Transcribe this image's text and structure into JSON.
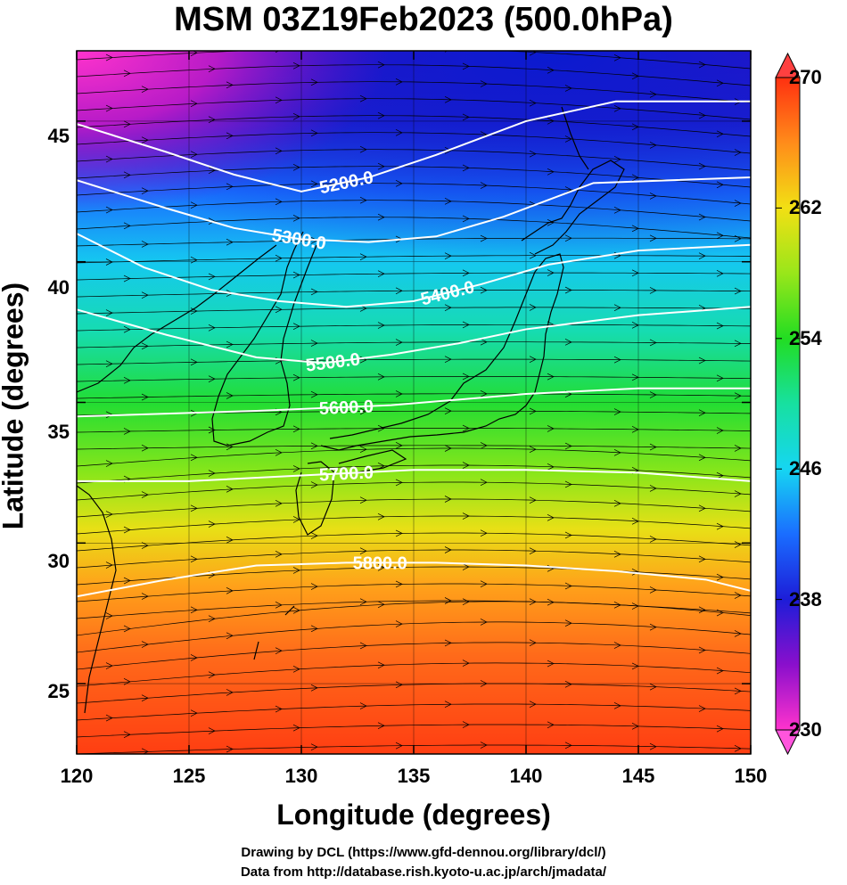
{
  "title": "MSM 03Z19Feb2023 (500.0hPa)",
  "credits": {
    "drawing": "Drawing by DCL (https://www.gfd-dennou.org/library/dcl/)",
    "data": "Data from http://database.rish.kyoto-u.ac.jp/arch/jmadata/"
  },
  "chart_data": {
    "type": "heatmap",
    "xlabel": "Longitude (degrees)",
    "ylabel": "Latitude  (degrees)",
    "xlim": [
      120,
      150
    ],
    "ylim": [
      22.5,
      47.5
    ],
    "x_ticks": [
      "120",
      "125",
      "130",
      "135",
      "140",
      "145",
      "150"
    ],
    "y_ticks": [
      "25",
      "30",
      "35",
      "40",
      "45"
    ],
    "colorbar": {
      "range": [
        230,
        270
      ],
      "ticks": [
        "230",
        "238",
        "246",
        "254",
        "262",
        "270"
      ],
      "extend": "both",
      "colors": [
        "#ff33cc",
        "#8800cc",
        "#1d1dd8",
        "#1a6dff",
        "#16d6f2",
        "#17e0a0",
        "#22dd22",
        "#99e61a",
        "#f2e014",
        "#ff8c1a",
        "#ff4a1a",
        "#ff3010"
      ]
    },
    "contours": {
      "variable": "geopotential height",
      "levels": [
        {
          "label": "5200.0",
          "points": [
            [
              120,
              44.9
            ],
            [
              124,
              43.9
            ],
            [
              127,
              43.1
            ],
            [
              130,
              42.5
            ],
            [
              133,
              43.0
            ],
            [
              136,
              43.8
            ],
            [
              140,
              45.0
            ],
            [
              144,
              45.7
            ],
            [
              150,
              45.7
            ]
          ]
        },
        {
          "label": "5300.0",
          "points": [
            [
              120,
              42.9
            ],
            [
              124,
              41.9
            ],
            [
              127,
              41.2
            ],
            [
              130,
              40.8
            ],
            [
              133,
              40.7
            ],
            [
              136,
              40.9
            ],
            [
              139,
              41.6
            ],
            [
              143,
              42.8
            ],
            [
              150,
              43.0
            ]
          ]
        },
        {
          "label": "5400.0",
          "points": [
            [
              120,
              41.0
            ],
            [
              123,
              39.8
            ],
            [
              126,
              39.0
            ],
            [
              129,
              38.6
            ],
            [
              132,
              38.4
            ],
            [
              135,
              38.6
            ],
            [
              138,
              39.2
            ],
            [
              141,
              39.9
            ],
            [
              145,
              40.4
            ],
            [
              150,
              40.6
            ]
          ]
        },
        {
          "label": "5500.0",
          "points": [
            [
              120,
              38.3
            ],
            [
              124,
              37.4
            ],
            [
              128,
              36.6
            ],
            [
              131,
              36.4
            ],
            [
              134,
              36.7
            ],
            [
              137,
              37.1
            ],
            [
              140,
              37.6
            ],
            [
              145,
              38.1
            ],
            [
              150,
              38.4
            ]
          ]
        },
        {
          "label": "5600.0",
          "points": [
            [
              120,
              34.5
            ],
            [
              124,
              34.6
            ],
            [
              128,
              34.7
            ],
            [
              131,
              34.8
            ],
            [
              134,
              34.9
            ],
            [
              137,
              35.1
            ],
            [
              140,
              35.3
            ],
            [
              145,
              35.5
            ],
            [
              150,
              35.5
            ]
          ]
        },
        {
          "label": "5700.0",
          "points": [
            [
              120,
              32.2
            ],
            [
              125,
              32.2
            ],
            [
              130,
              32.4
            ],
            [
              135,
              32.6
            ],
            [
              140,
              32.6
            ],
            [
              145,
              32.5
            ],
            [
              150,
              32.2
            ]
          ]
        },
        {
          "label": "5800.0",
          "points": [
            [
              120,
              28.1
            ],
            [
              124,
              28.7
            ],
            [
              128,
              29.2
            ],
            [
              132,
              29.3
            ],
            [
              136,
              29.3
            ],
            [
              140,
              29.2
            ],
            [
              144,
              29.0
            ],
            [
              148,
              28.7
            ],
            [
              150,
              28.3
            ]
          ]
        }
      ]
    },
    "vectors": "streamlines (wind)",
    "grid": true,
    "coastlines": true
  }
}
